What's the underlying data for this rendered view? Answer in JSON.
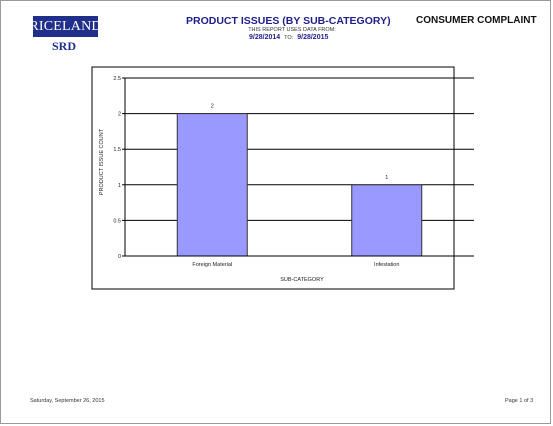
{
  "logo": {
    "brand": "RICELAND",
    "sub": "SRD"
  },
  "report": {
    "title": "PRODUCT ISSUES (BY SUB-CATEGORY)",
    "subtitle": "THIS REPORT USES DATA FROM:",
    "date_from": "9/28/2014",
    "date_to_label": "TO:",
    "date_to": "9/28/2015",
    "category": "CONSUMER COMPLAINT"
  },
  "footer": {
    "date": "Saturday, September 26, 2015",
    "page": "Page 1 of 3"
  },
  "chart_data": {
    "type": "bar",
    "categories": [
      "Foreign Material",
      "Infestation"
    ],
    "values": [
      2,
      1
    ],
    "data_labels": [
      "2",
      "1"
    ],
    "xlabel": "SUB-CATEGORY",
    "ylabel": "PRODUCT ISSUE COUNT",
    "ylim": [
      0,
      2.5
    ],
    "yticks": [
      "0",
      "0.5",
      "1",
      "1.5",
      "2",
      "2.5"
    ],
    "grid": true,
    "legend": "none",
    "colors": {
      "bar": "#9999ff",
      "bar_border": "#333333",
      "grid": "#000000"
    }
  }
}
